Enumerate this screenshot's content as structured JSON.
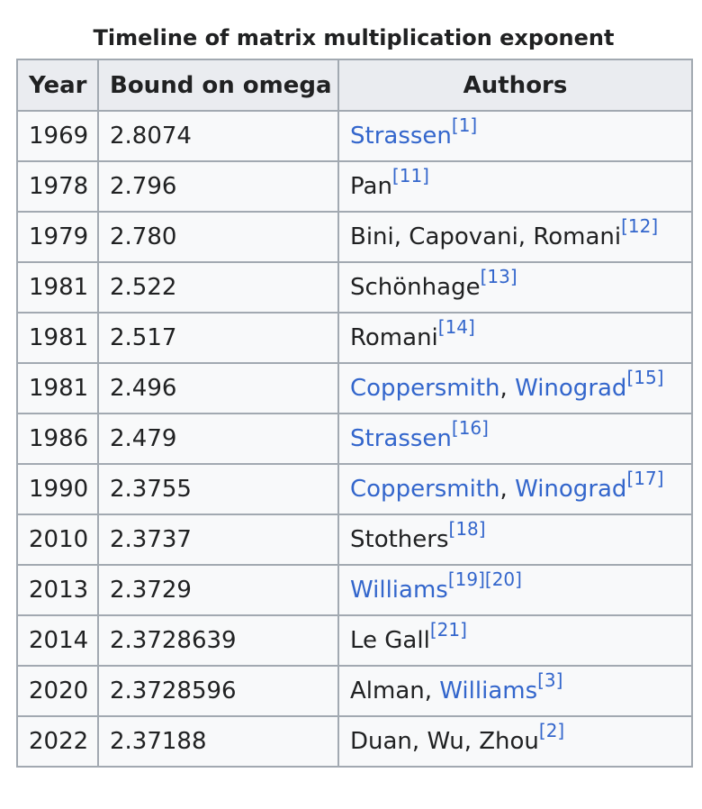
{
  "caption": "Timeline of matrix multiplication exponent",
  "headers": {
    "year": "Year",
    "bound": "Bound on omega",
    "authors": "Authors"
  },
  "rows": [
    {
      "year": "1969",
      "bound": "2.8074",
      "authors": [
        {
          "text": "Strassen",
          "link": true
        }
      ],
      "refs": [
        "[1]"
      ]
    },
    {
      "year": "1978",
      "bound": "2.796",
      "authors": [
        {
          "text": "Pan",
          "link": false
        }
      ],
      "refs": [
        "[11]"
      ]
    },
    {
      "year": "1979",
      "bound": "2.780",
      "authors": [
        {
          "text": "Bini, Capovani, Romani",
          "link": false
        }
      ],
      "refs": [
        "[12]"
      ]
    },
    {
      "year": "1981",
      "bound": "2.522",
      "authors": [
        {
          "text": "Schönhage",
          "link": false
        }
      ],
      "refs": [
        "[13]"
      ]
    },
    {
      "year": "1981",
      "bound": "2.517",
      "authors": [
        {
          "text": "Romani",
          "link": false
        }
      ],
      "refs": [
        "[14]"
      ]
    },
    {
      "year": "1981",
      "bound": "2.496",
      "authors": [
        {
          "text": "Coppersmith",
          "link": true
        },
        {
          "text": ", ",
          "link": false
        },
        {
          "text": "Winograd",
          "link": true
        }
      ],
      "refs": [
        "[15]"
      ]
    },
    {
      "year": "1986",
      "bound": "2.479",
      "authors": [
        {
          "text": "Strassen",
          "link": true
        }
      ],
      "refs": [
        "[16]"
      ]
    },
    {
      "year": "1990",
      "bound": "2.3755",
      "authors": [
        {
          "text": "Coppersmith",
          "link": true
        },
        {
          "text": ", ",
          "link": false
        },
        {
          "text": "Winograd",
          "link": true
        }
      ],
      "refs": [
        "[17]"
      ]
    },
    {
      "year": "2010",
      "bound": "2.3737",
      "authors": [
        {
          "text": "Stothers",
          "link": false
        }
      ],
      "refs": [
        "[18]"
      ]
    },
    {
      "year": "2013",
      "bound": "2.3729",
      "authors": [
        {
          "text": "Williams",
          "link": true
        }
      ],
      "refs": [
        "[19]",
        "[20]"
      ]
    },
    {
      "year": "2014",
      "bound": "2.3728639",
      "authors": [
        {
          "text": "Le Gall",
          "link": false
        }
      ],
      "refs": [
        "[21]"
      ]
    },
    {
      "year": "2020",
      "bound": "2.3728596",
      "authors": [
        {
          "text": "Alman, ",
          "link": false
        },
        {
          "text": "Williams",
          "link": true
        }
      ],
      "refs": [
        "[3]"
      ]
    },
    {
      "year": "2022",
      "bound": "2.37188",
      "authors": [
        {
          "text": "Duan, Wu, Zhou",
          "link": false
        }
      ],
      "refs": [
        "[2]"
      ]
    }
  ],
  "colors": {
    "link": "#3366cc",
    "header_bg": "#eaecf0",
    "cell_bg": "#f8f9fa",
    "border": "#a2a9b1",
    "text": "#202122"
  }
}
